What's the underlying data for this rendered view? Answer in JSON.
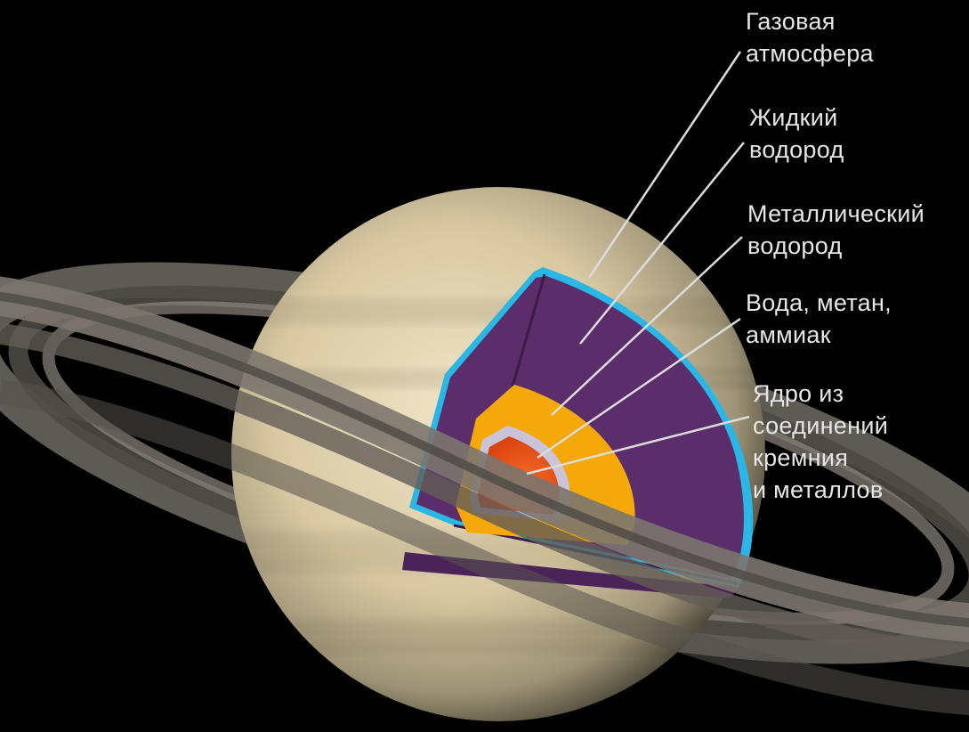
{
  "layers": [
    {
      "lines": [
        "Газовая",
        "атмосфера"
      ]
    },
    {
      "lines": [
        "Жидкий",
        "водород"
      ]
    },
    {
      "lines": [
        "Металлический",
        "водород"
      ]
    },
    {
      "lines": [
        "Вода, метан,",
        "аммиак"
      ]
    },
    {
      "lines": [
        "Ядро из",
        "соединений",
        "кремния",
        "и металлов"
      ]
    }
  ],
  "colors": {
    "background": "#000000",
    "gas_atmosphere": "#2bb7e6",
    "metallic_hydrogen": "#5c2d6b",
    "water_methane_ammonia": "#f5a80a",
    "ice_shell": "#c9c4d8",
    "core": "#e8541c",
    "label_text": "#e6e6e6",
    "leader_line": "#dcdcdc"
  }
}
